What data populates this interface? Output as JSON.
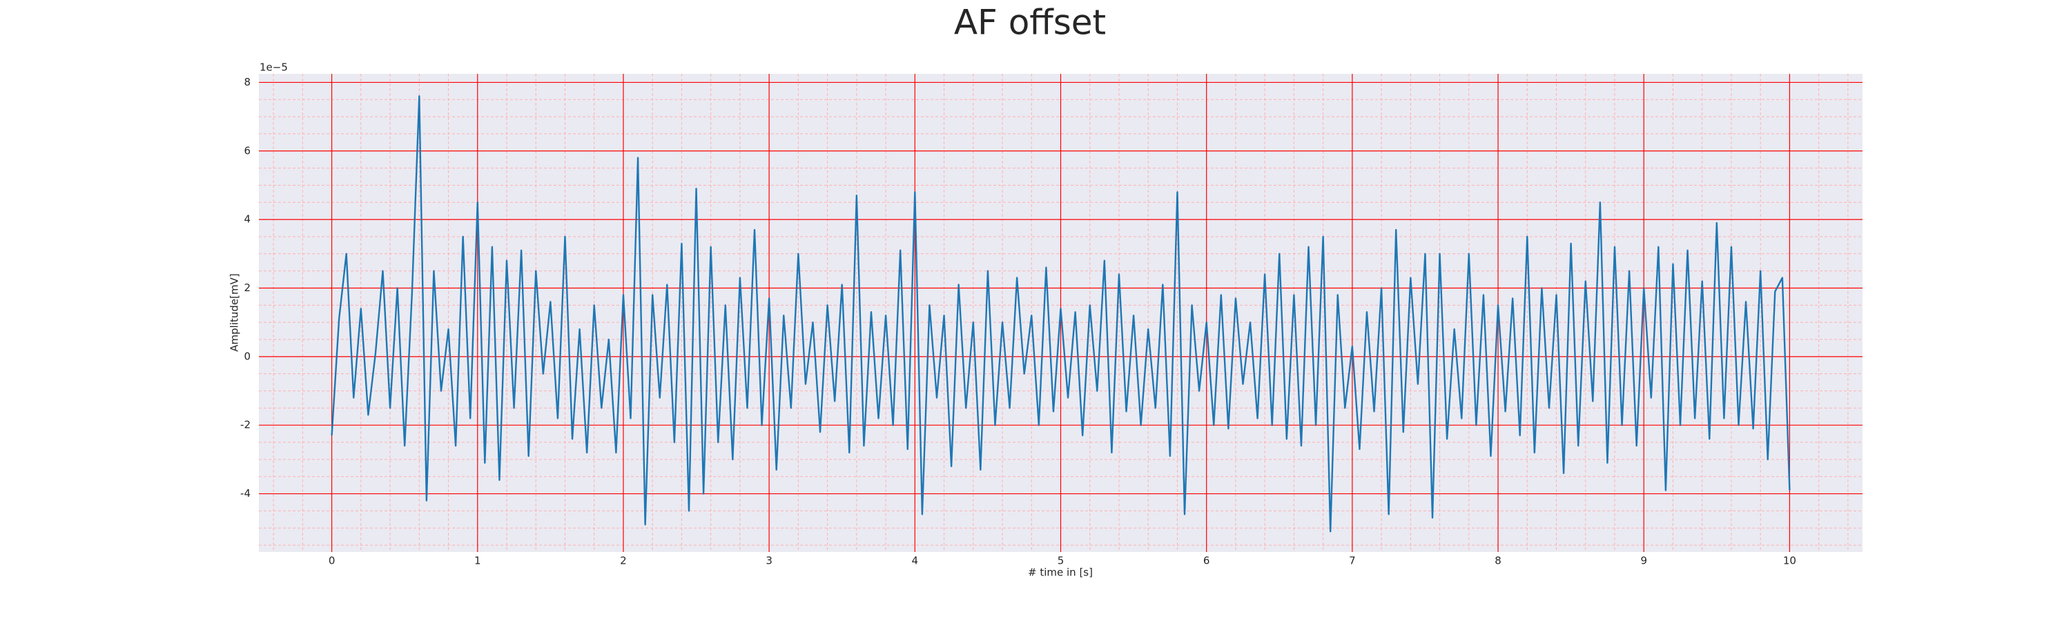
{
  "chart_data": {
    "type": "line",
    "title": "AF offset",
    "xlabel": "# time in [s]",
    "ylabel": "Amplitude[mV]",
    "y_offset_text": "1e−5",
    "xlim": [
      -0.5,
      10.5
    ],
    "ylim": [
      -5.7,
      8.25
    ],
    "xticks": [
      0,
      1,
      2,
      3,
      4,
      5,
      6,
      7,
      8,
      9,
      10
    ],
    "yticks": [
      -4,
      -2,
      0,
      2,
      4,
      6,
      8
    ],
    "xminorticks": [
      -0.4,
      -0.2,
      0.2,
      0.4,
      0.6,
      0.8,
      1.2,
      1.4,
      1.6,
      1.8,
      2.2,
      2.4,
      2.6,
      2.8,
      3.2,
      3.4,
      3.6,
      3.8,
      4.2,
      4.4,
      4.6,
      4.8,
      5.2,
      5.4,
      5.6,
      5.8,
      6.2,
      6.4,
      6.6,
      6.8,
      7.2,
      7.4,
      7.6,
      7.8,
      8.2,
      8.4,
      8.6,
      8.8,
      9.2,
      9.4,
      9.6,
      9.8,
      10.2,
      10.4
    ],
    "yminorticks": [
      -5.5,
      -5,
      -4.5,
      -3.5,
      -3,
      -2.5,
      -1.5,
      -1,
      -0.5,
      0.5,
      1,
      1.5,
      2.5,
      3,
      3.5,
      4.5,
      5,
      5.5,
      6.5,
      7,
      7.5
    ],
    "grid": true,
    "grid_color": "#ff0000",
    "minor_grid_color": "#ffb0b0",
    "background": "#eaeaf2",
    "x": [
      0,
      0.05,
      0.1,
      0.15,
      0.2,
      0.25,
      0.3,
      0.35,
      0.4,
      0.45,
      0.5,
      0.55,
      0.6,
      0.65,
      0.7,
      0.75,
      0.8,
      0.85,
      0.9,
      0.95,
      1,
      1.05,
      1.1,
      1.15,
      1.2,
      1.25,
      1.3,
      1.35,
      1.4,
      1.45,
      1.5,
      1.55,
      1.6,
      1.65,
      1.7,
      1.75,
      1.8,
      1.85,
      1.9,
      1.95,
      2,
      2.05,
      2.1,
      2.15,
      2.2,
      2.25,
      2.3,
      2.35,
      2.4,
      2.45,
      2.5,
      2.55,
      2.6,
      2.65,
      2.7,
      2.75,
      2.8,
      2.85,
      2.9,
      2.95,
      3,
      3.05,
      3.1,
      3.15,
      3.2,
      3.25,
      3.3,
      3.35,
      3.4,
      3.45,
      3.5,
      3.55,
      3.6,
      3.65,
      3.7,
      3.75,
      3.8,
      3.85,
      3.9,
      3.95,
      4,
      4.05,
      4.1,
      4.15,
      4.2,
      4.25,
      4.3,
      4.35,
      4.4,
      4.45,
      4.5,
      4.55,
      4.6,
      4.65,
      4.7,
      4.75,
      4.8,
      4.85,
      4.9,
      4.95,
      5,
      5.05,
      5.1,
      5.15,
      5.2,
      5.25,
      5.3,
      5.35,
      5.4,
      5.45,
      5.5,
      5.55,
      5.6,
      5.65,
      5.7,
      5.75,
      5.8,
      5.85,
      5.9,
      5.95,
      6,
      6.05,
      6.1,
      6.15,
      6.2,
      6.25,
      6.3,
      6.35,
      6.4,
      6.45,
      6.5,
      6.55,
      6.6,
      6.65,
      6.7,
      6.75,
      6.8,
      6.85,
      6.9,
      6.95,
      7,
      7.05,
      7.1,
      7.15,
      7.2,
      7.25,
      7.3,
      7.35,
      7.4,
      7.45,
      7.5,
      7.55,
      7.6,
      7.65,
      7.7,
      7.75,
      7.8,
      7.85,
      7.9,
      7.95,
      8,
      8.05,
      8.1,
      8.15,
      8.2,
      8.25,
      8.3,
      8.35,
      8.4,
      8.45,
      8.5,
      8.55,
      8.6,
      8.65,
      8.7,
      8.75,
      8.8,
      8.85,
      8.9,
      8.95,
      9,
      9.05,
      9.1,
      9.15,
      9.2,
      9.25,
      9.3,
      9.35,
      9.4,
      9.45,
      9.5,
      9.55,
      9.6,
      9.65,
      9.7,
      9.75,
      9.8,
      9.85,
      9.9,
      9.95,
      10
    ],
    "series": [
      {
        "color": "#1f77b4",
        "values": [
          -2.3,
          1.1,
          3.0,
          -1.2,
          1.4,
          -1.7,
          0.1,
          2.5,
          -1.5,
          2.0,
          -2.6,
          1.8,
          7.6,
          -4.2,
          2.5,
          -1.0,
          0.8,
          -2.6,
          3.5,
          -1.8,
          4.5,
          -3.1,
          3.2,
          -3.6,
          2.8,
          -1.5,
          3.1,
          -2.9,
          2.5,
          -0.5,
          1.6,
          -1.8,
          3.5,
          -2.4,
          0.8,
          -2.8,
          1.5,
          -1.5,
          0.5,
          -2.8,
          1.8,
          -1.8,
          5.8,
          -4.9,
          1.8,
          -1.2,
          2.1,
          -2.5,
          3.3,
          -4.5,
          4.9,
          -4.0,
          3.2,
          -2.5,
          1.5,
          -3.0,
          2.3,
          -1.5,
          3.7,
          -2.0,
          1.7,
          -3.3,
          1.2,
          -1.5,
          3.0,
          -0.8,
          1.0,
          -2.2,
          1.5,
          -1.3,
          2.1,
          -2.8,
          4.7,
          -2.6,
          1.3,
          -1.8,
          1.2,
          -2.0,
          3.1,
          -2.7,
          4.8,
          -4.6,
          1.5,
          -1.2,
          1.2,
          -3.2,
          2.1,
          -1.5,
          1.0,
          -3.3,
          2.5,
          -2.0,
          1.0,
          -1.5,
          2.3,
          -0.5,
          1.2,
          -2.0,
          2.6,
          -1.6,
          1.4,
          -1.2,
          1.3,
          -2.3,
          1.5,
          -1.0,
          2.8,
          -2.8,
          2.4,
          -1.6,
          1.2,
          -2.0,
          0.8,
          -1.5,
          2.1,
          -2.9,
          4.8,
          -4.6,
          1.5,
          -1.0,
          1.0,
          -2.0,
          1.8,
          -2.1,
          1.7,
          -0.8,
          1.0,
          -1.8,
          2.4,
          -2.0,
          3.0,
          -2.4,
          1.8,
          -2.6,
          3.2,
          -2.0,
          3.5,
          -5.1,
          1.8,
          -1.5,
          0.3,
          -2.7,
          1.3,
          -1.6,
          2.0,
          -4.6,
          3.7,
          -2.2,
          2.3,
          -0.8,
          3.0,
          -4.7,
          3.0,
          -2.4,
          0.8,
          -1.8,
          3.0,
          -2.0,
          1.8,
          -2.9,
          1.5,
          -1.6,
          1.7,
          -2.3,
          3.5,
          -2.8,
          2.0,
          -1.5,
          1.8,
          -3.4,
          3.3,
          -2.6,
          2.2,
          -1.3,
          4.5,
          -3.1,
          3.2,
          -2.0,
          2.5,
          -2.6,
          2.0,
          -1.2,
          3.2,
          -3.9,
          2.7,
          -2.0,
          3.1,
          -1.8,
          2.2,
          -2.4,
          3.9,
          -1.8,
          3.2,
          -2.0,
          1.6,
          -2.1,
          2.5,
          -3.0,
          1.9,
          2.3,
          -3.9
        ]
      }
    ]
  }
}
